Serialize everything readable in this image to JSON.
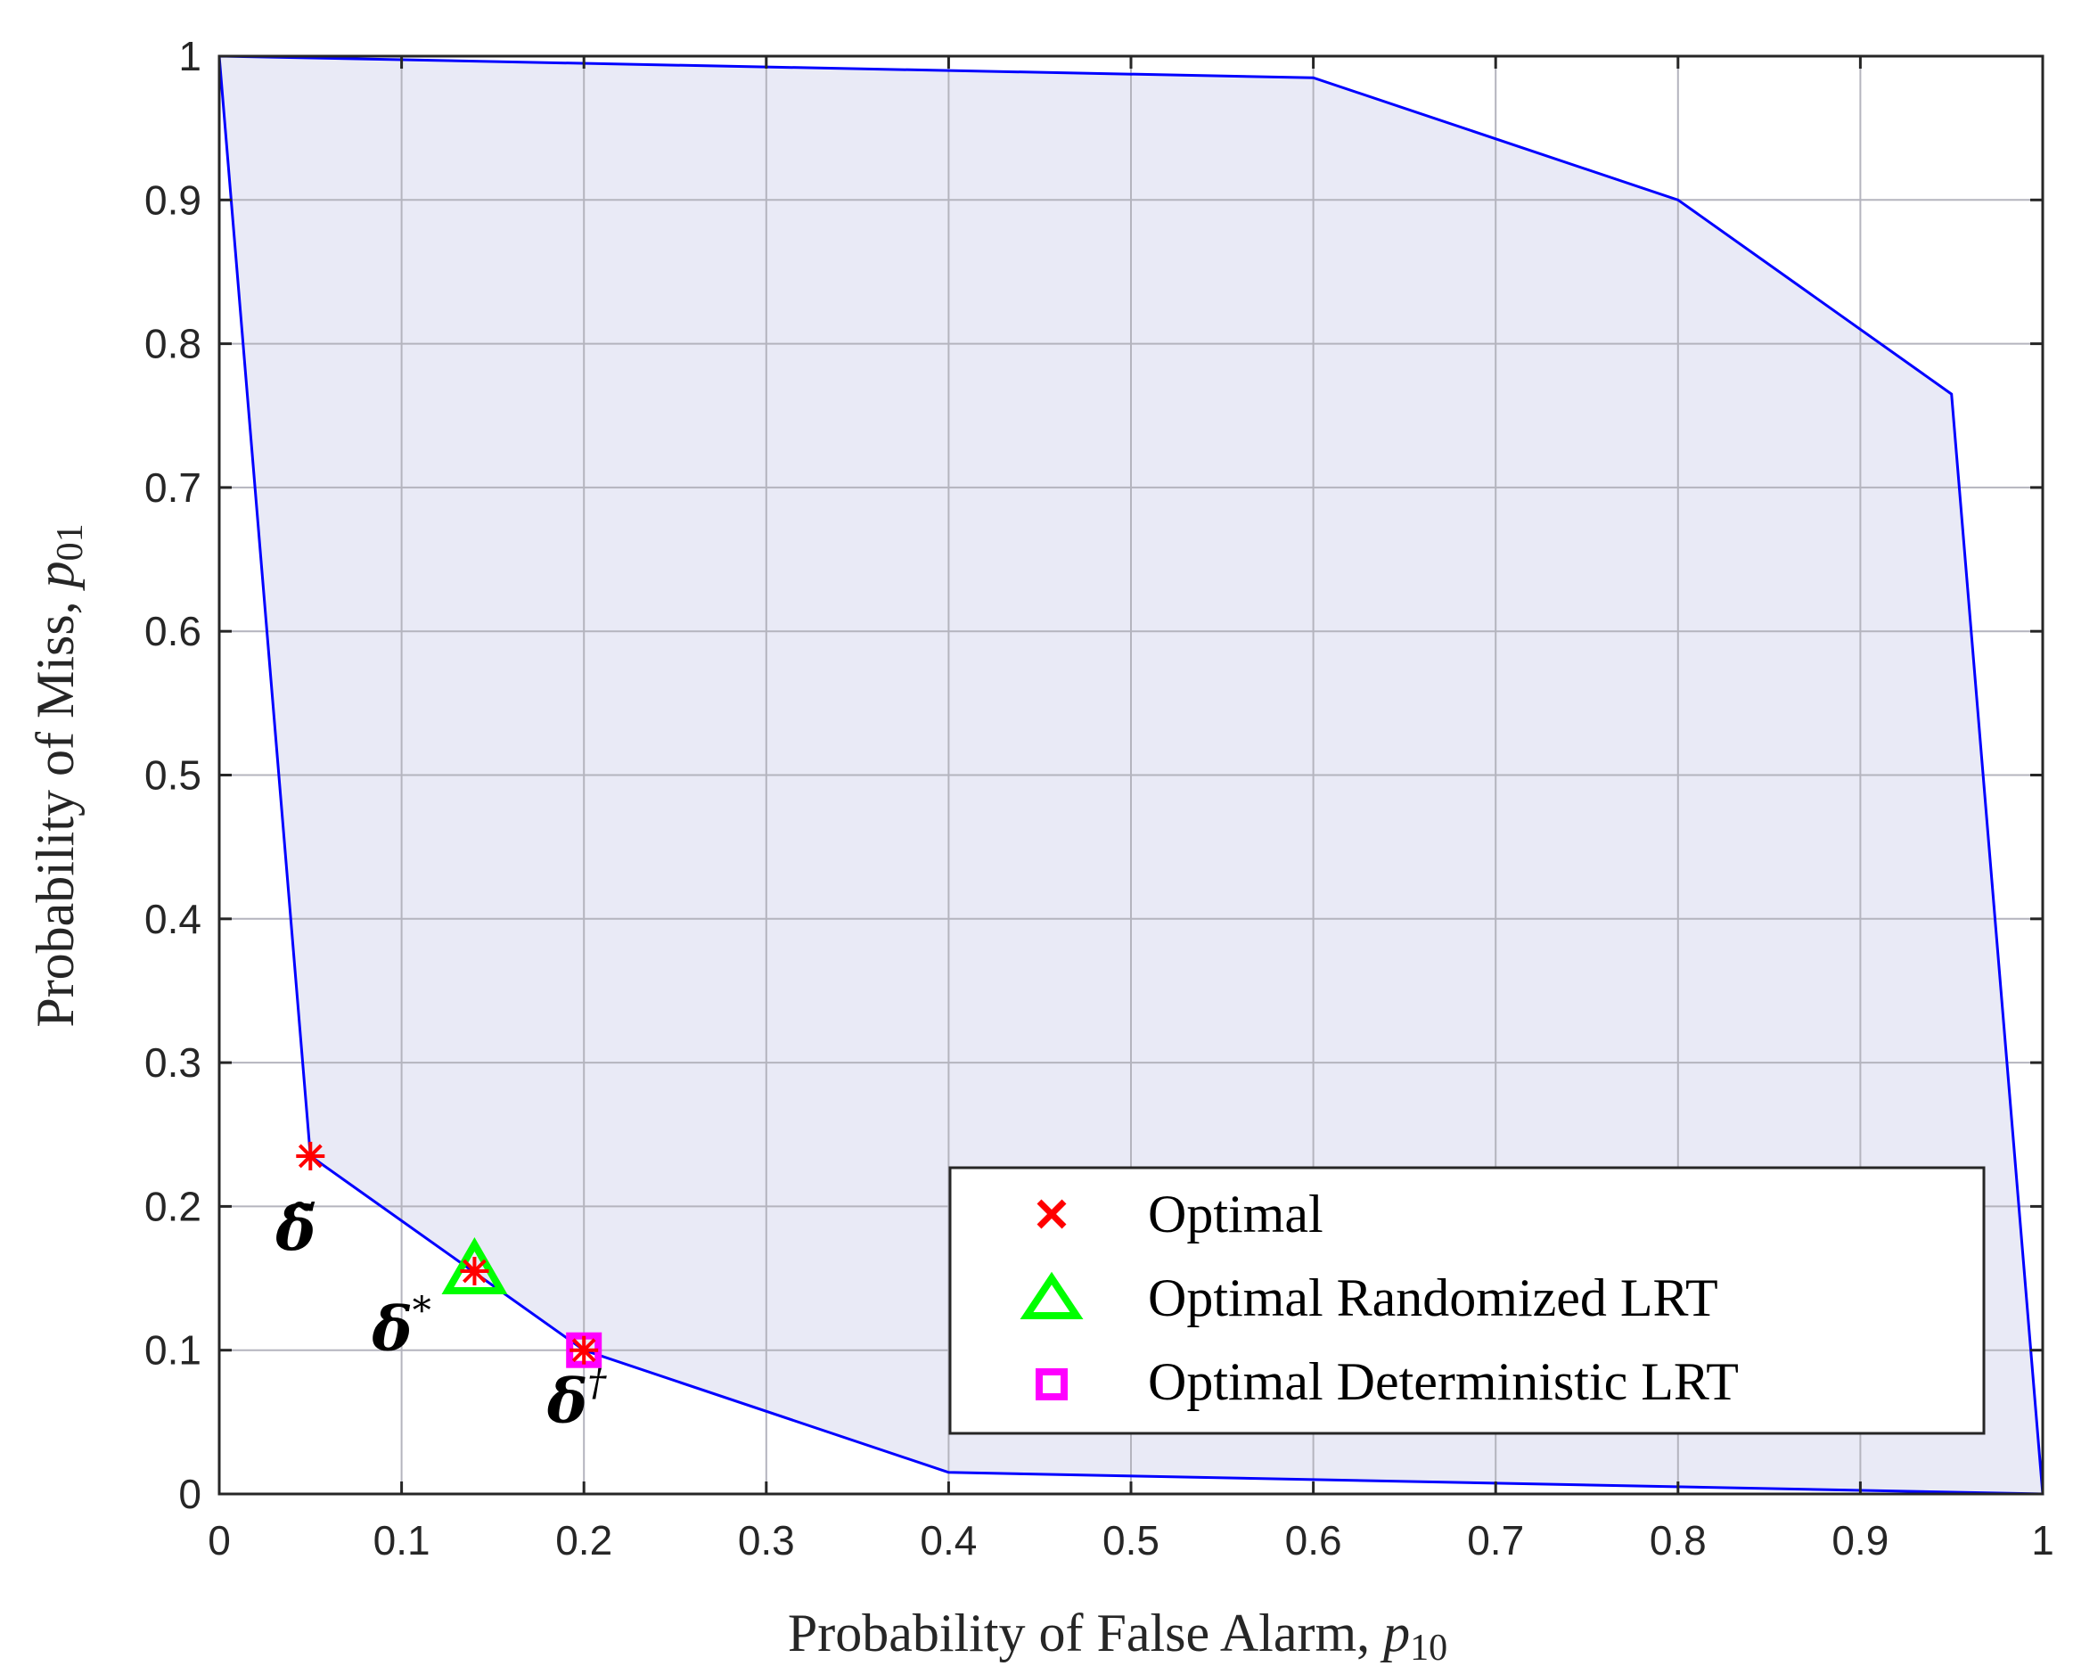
{
  "chart_data": {
    "type": "area",
    "title": "",
    "xlabel": "Probability of False Alarm, ",
    "xlabel_var": "p",
    "xlabel_sub": "10",
    "ylabel": "Probability of Miss, ",
    "ylabel_var": "p",
    "ylabel_sub": "01",
    "xlim": [
      0,
      1
    ],
    "ylim": [
      0,
      1
    ],
    "xticks": [
      0,
      0.1,
      0.2,
      0.3,
      0.4,
      0.5,
      0.6,
      0.7,
      0.8,
      0.9,
      1
    ],
    "yticks": [
      0,
      0.1,
      0.2,
      0.3,
      0.4,
      0.5,
      0.6,
      0.7,
      0.8,
      0.9,
      1
    ],
    "xtick_labels": [
      "0",
      "0.1",
      "0.2",
      "0.3",
      "0.4",
      "0.5",
      "0.6",
      "0.7",
      "0.8",
      "0.9",
      "1"
    ],
    "ytick_labels": [
      "0",
      "0.1",
      "0.2",
      "0.3",
      "0.4",
      "0.5",
      "0.6",
      "0.7",
      "0.8",
      "0.9",
      "1"
    ],
    "grid": true,
    "legend_position": "bottom-right",
    "region": {
      "fill_color": "#e9eaf6",
      "line_color": "#0000ff",
      "boundary": [
        {
          "x": 0,
          "y": 1
        },
        {
          "x": 0.6,
          "y": 0.985
        },
        {
          "x": 0.8,
          "y": 0.9
        },
        {
          "x": 0.95,
          "y": 0.765
        },
        {
          "x": 1,
          "y": 0
        },
        {
          "x": 0.4,
          "y": 0.015
        },
        {
          "x": 0.2,
          "y": 0.1
        },
        {
          "x": 0.05,
          "y": 0.235
        },
        {
          "x": 0,
          "y": 1
        }
      ]
    },
    "series": [
      {
        "name": "Optimal",
        "marker": "asterisk",
        "color": "#ff0000",
        "points": [
          {
            "x": 0.05,
            "y": 0.235
          },
          {
            "x": 0.14,
            "y": 0.155
          },
          {
            "x": 0.2,
            "y": 0.1
          }
        ]
      },
      {
        "name": "Optimal Randomized LRT",
        "marker": "triangle",
        "color": "#00ff00",
        "points": [
          {
            "x": 0.14,
            "y": 0.155
          }
        ]
      },
      {
        "name": "Optimal Deterministic LRT",
        "marker": "square",
        "color": "#ff00ff",
        "points": [
          {
            "x": 0.2,
            "y": 0.1
          }
        ]
      }
    ],
    "annotations": [
      {
        "text": "δ̃",
        "sup": "",
        "x": 0.042,
        "y": 0.17
      },
      {
        "text": "δ",
        "sup": "*",
        "x": 0.1,
        "y": 0.1
      },
      {
        "text": "δ",
        "sup": "†",
        "x": 0.196,
        "y": 0.05
      }
    ]
  }
}
